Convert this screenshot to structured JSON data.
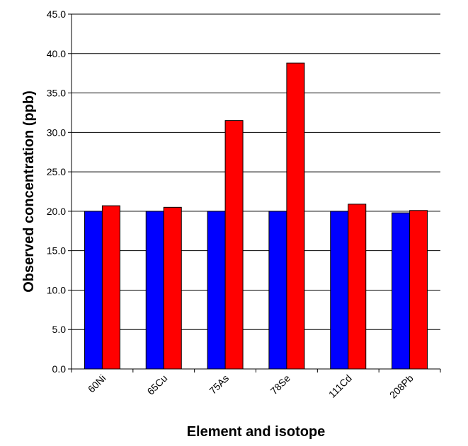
{
  "chart_data": {
    "type": "bar",
    "title": "",
    "xlabel": "Element and isotope",
    "ylabel": "Observed concentration (ppb)",
    "categories": [
      "60Ni",
      "65Cu",
      "75As",
      "78Se",
      "111Cd",
      "208Pb"
    ],
    "series": [
      {
        "values": [
          20.0,
          20.0,
          20.0,
          20.0,
          20.0,
          19.8
        ],
        "color": "#0000ff"
      },
      {
        "values": [
          20.7,
          20.5,
          31.5,
          38.8,
          20.9,
          20.1
        ],
        "color": "#ff0000"
      }
    ],
    "ylim": [
      0,
      45
    ],
    "ytick_step": 5,
    "ytick_decimals": 1,
    "grid": true,
    "legend": "none"
  }
}
